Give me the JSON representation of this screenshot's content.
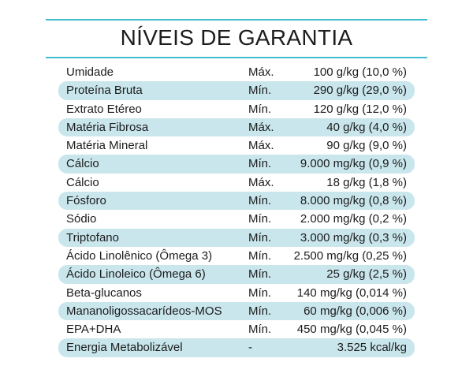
{
  "title": "NÍVEIS DE GARANTIA",
  "colors": {
    "accent_line": "#3fbccc",
    "row_shade": "#c9e6ec"
  },
  "rows": [
    {
      "name": "Umidade",
      "limit": "Máx.",
      "value": "100 g/kg (10,0 %)"
    },
    {
      "name": "Proteína Bruta",
      "limit": "Mín.",
      "value": "290 g/kg (29,0 %)"
    },
    {
      "name": "Extrato Etéreo",
      "limit": "Mín.",
      "value": "120 g/kg (12,0 %)"
    },
    {
      "name": "Matéria Fibrosa",
      "limit": "Máx.",
      "value": "40 g/kg (4,0 %)"
    },
    {
      "name": "Matéria Mineral",
      "limit": "Máx.",
      "value": "90 g/kg (9,0 %)"
    },
    {
      "name": "Cálcio",
      "limit": "Mín.",
      "value": "9.000 mg/kg (0,9 %)"
    },
    {
      "name": "Cálcio",
      "limit": "Máx.",
      "value": "18 g/kg (1,8 %)"
    },
    {
      "name": "Fósforo",
      "limit": "Mín.",
      "value": "8.000 mg/kg (0,8 %)"
    },
    {
      "name": "Sódio",
      "limit": "Mín.",
      "value": "2.000 mg/kg (0,2 %)"
    },
    {
      "name": "Triptofano",
      "limit": "Mín.",
      "value": "3.000 mg/kg (0,3 %)"
    },
    {
      "name": "Ácido Linolênico (Ômega 3)",
      "limit": "Mín.",
      "value": "2.500 mg/kg (0,25 %)"
    },
    {
      "name": "Ácido Linoleico (Ômega 6)",
      "limit": "Mín.",
      "value": "25 g/kg (2,5 %)"
    },
    {
      "name": "Beta-glucanos",
      "limit": "Mín.",
      "value": "140 mg/kg (0,014 %)"
    },
    {
      "name": "Mananoligossacarídeos-MOS",
      "limit": "Mín.",
      "value": "60 mg/kg (0,006 %)"
    },
    {
      "name": "EPA+DHA",
      "limit": "Mín.",
      "value": "450 mg/kg (0,045 %)"
    },
    {
      "name": "Energia Metabolizável",
      "limit": "-",
      "value": "3.525 kcal/kg"
    }
  ]
}
